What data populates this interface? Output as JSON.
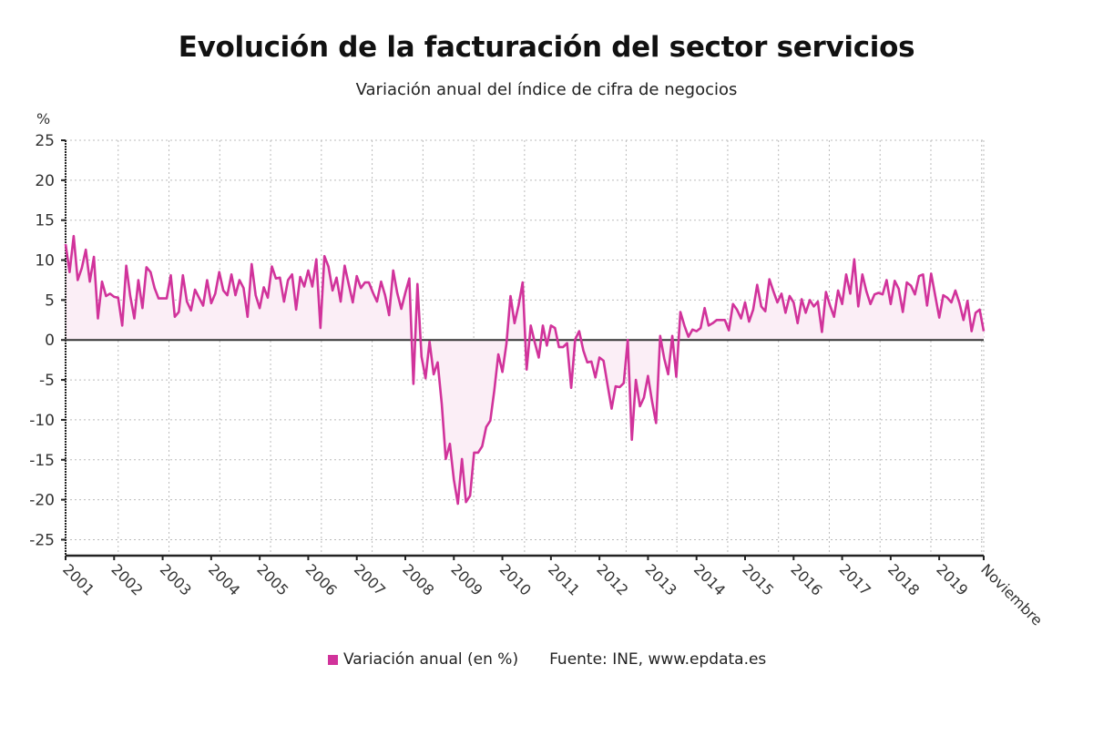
{
  "title": "Evolución de la facturación del sector servicios",
  "subtitle": "Variación anual del índice de cifra de negocios",
  "colors": {
    "line": "#d1339b",
    "fill": "#fbeef6",
    "axis": "#222222",
    "grid": "#bbbbbb"
  },
  "legend": {
    "series_label": "Variación anual (en %)",
    "source": "Fuente: INE, www.epdata.es"
  },
  "chart_data": {
    "type": "area",
    "title": "Evolución de la facturación del sector servicios",
    "subtitle": "Variación anual del índice de cifra de negocios",
    "xlabel": "",
    "ylabel": "%",
    "ylim": [
      -27,
      25
    ],
    "yticks": [
      25,
      20,
      15,
      10,
      5,
      0,
      -5,
      -10,
      -15,
      -20,
      -25
    ],
    "xtick_labels": [
      "2001",
      "2002",
      "2003",
      "2004",
      "2005",
      "2006",
      "2007",
      "2008",
      "2009",
      "2010",
      "2011",
      "2012",
      "2013",
      "2014",
      "2015",
      "2016",
      "2017",
      "2018",
      "2019",
      "Noviembre"
    ],
    "x_start": "2001-01",
    "x_end": "2019-11",
    "frequency": "monthly",
    "grid": true,
    "legend_position": "bottom",
    "series": [
      {
        "name": "Variación anual (en %)",
        "values": [
          12.0,
          8.5,
          13.0,
          7.5,
          9.0,
          11.3,
          7.3,
          10.4,
          2.7,
          7.3,
          5.5,
          5.8,
          5.4,
          5.3,
          1.8,
          9.3,
          5.5,
          2.7,
          7.5,
          4.0,
          9.1,
          8.5,
          6.5,
          5.2,
          5.2,
          5.2,
          8.1,
          2.9,
          3.5,
          8.1,
          4.8,
          3.7,
          6.3,
          5.3,
          4.3,
          7.5,
          4.6,
          5.8,
          8.5,
          6.2,
          5.6,
          8.2,
          5.6,
          7.5,
          6.5,
          2.9,
          9.5,
          5.6,
          4.0,
          6.6,
          5.3,
          9.2,
          7.7,
          7.8,
          4.8,
          7.5,
          8.2,
          3.8,
          7.9,
          6.7,
          8.7,
          6.7,
          10.1,
          1.5,
          10.5,
          9.2,
          6.2,
          7.8,
          4.8,
          9.3,
          7.0,
          4.7,
          8.0,
          6.5,
          7.2,
          7.2,
          5.9,
          4.8,
          7.3,
          5.6,
          3.1,
          8.7,
          5.9,
          3.9,
          5.9,
          7.7,
          -5.5,
          7.0,
          -2.1,
          -4.8,
          -0.2,
          -4.3,
          -2.8,
          -8.0,
          -14.9,
          -13.0,
          -17.5,
          -20.5,
          -14.9,
          -20.3,
          -19.5,
          -14.1,
          -14.1,
          -13.3,
          -10.9,
          -10.1,
          -6.3,
          -1.8,
          -4.0,
          -0.5,
          5.5,
          2.1,
          4.3,
          7.2,
          -3.7,
          1.8,
          -0.3,
          -2.2,
          1.8,
          -0.7,
          1.8,
          1.5,
          -0.9,
          -0.9,
          -0.4,
          -6.0,
          0.1,
          1.1,
          -1.3,
          -2.8,
          -2.7,
          -4.7,
          -2.2,
          -2.6,
          -5.6,
          -8.6,
          -5.8,
          -5.9,
          -5.4,
          0.0,
          -12.5,
          -5.0,
          -8.3,
          -7.2,
          -4.5,
          -7.7,
          -10.4,
          0.5,
          -2.3,
          -4.3,
          0.5,
          -4.6,
          3.5,
          1.8,
          0.4,
          1.3,
          1.1,
          1.5,
          4.0,
          1.8,
          2.1,
          2.5,
          2.5,
          2.5,
          1.2,
          4.5,
          3.8,
          2.7,
          4.7,
          2.3,
          3.8,
          6.9,
          4.2,
          3.6,
          7.6,
          6.1,
          4.7,
          5.8,
          3.4,
          5.5,
          4.7,
          2.1,
          5.1,
          3.4,
          5.0,
          4.2,
          4.8,
          1.0,
          6.0,
          4.3,
          2.9,
          6.2,
          4.5,
          8.2,
          5.8,
          10.1,
          4.2,
          8.2,
          6.1,
          4.5,
          5.7,
          5.9,
          5.7,
          7.5,
          4.5,
          7.4,
          6.4,
          3.5,
          7.2,
          6.8,
          5.7,
          8.0,
          8.2,
          4.3,
          8.3,
          5.6,
          2.8,
          5.6,
          5.3,
          4.7,
          6.2,
          4.6,
          2.5,
          4.9,
          1.1,
          3.4,
          3.8,
          1.1
        ]
      }
    ]
  }
}
